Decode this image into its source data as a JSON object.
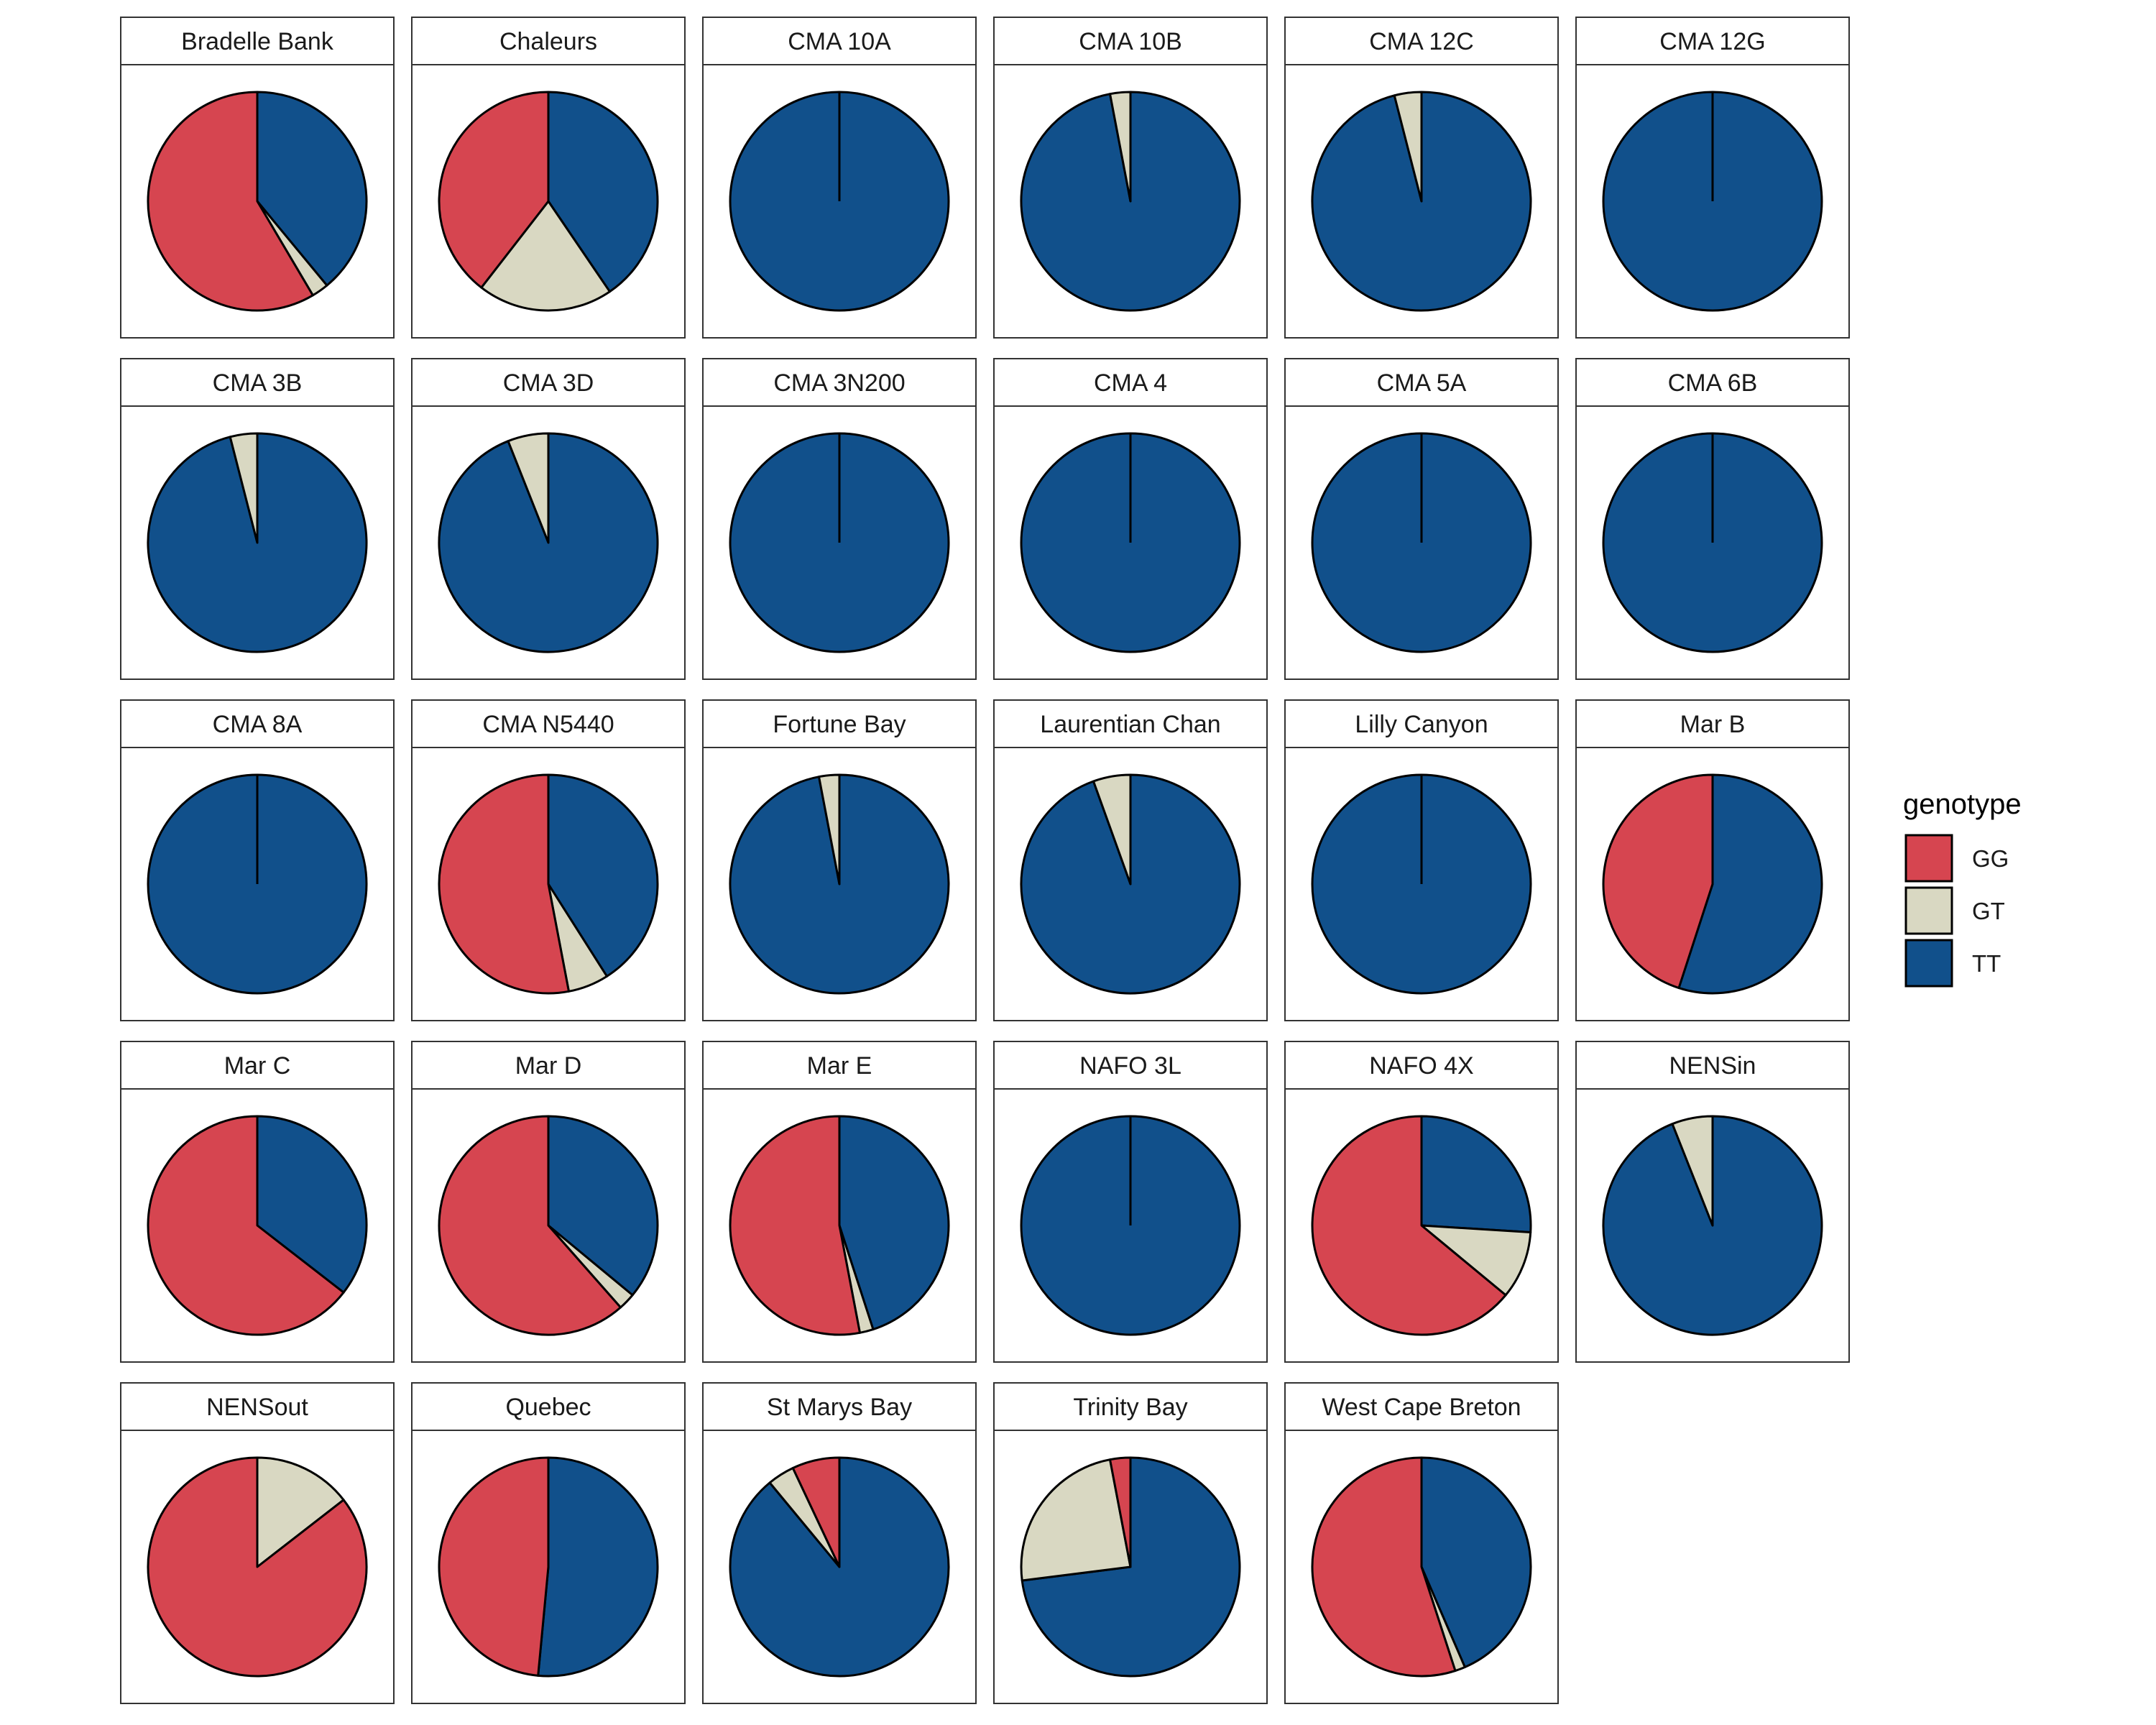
{
  "chart_data": {
    "type": "pie",
    "legend": {
      "title": "genotype",
      "position": "right",
      "entries": [
        {
          "label": "GG",
          "color": "#d64550"
        },
        {
          "label": "GT",
          "color": "#d9d8c2"
        },
        {
          "label": "TT",
          "color": "#11508b"
        }
      ]
    },
    "series_order": [
      "GG",
      "GT",
      "TT"
    ],
    "panels": [
      {
        "label": "Bradelle Bank",
        "GG": 0.585,
        "GT": 0.025,
        "TT": 0.39
      },
      {
        "label": "Chaleurs",
        "GG": 0.395,
        "GT": 0.2,
        "TT": 0.405
      },
      {
        "label": "CMA 10A",
        "GG": 0,
        "GT": 0,
        "TT": 1
      },
      {
        "label": "CMA 10B",
        "GG": 0,
        "GT": 0.03,
        "TT": 0.97
      },
      {
        "label": "CMA 12C",
        "GG": 0,
        "GT": 0.04,
        "TT": 0.96
      },
      {
        "label": "CMA 12G",
        "GG": 0,
        "GT": 0,
        "TT": 1
      },
      {
        "label": "CMA 3B",
        "GG": 0,
        "GT": 0.04,
        "TT": 0.96
      },
      {
        "label": "CMA 3D",
        "GG": 0,
        "GT": 0.06,
        "TT": 0.94
      },
      {
        "label": "CMA 3N200",
        "GG": 0,
        "GT": 0,
        "TT": 1
      },
      {
        "label": "CMA 4",
        "GG": 0,
        "GT": 0,
        "TT": 1
      },
      {
        "label": "CMA 5A",
        "GG": 0,
        "GT": 0,
        "TT": 1
      },
      {
        "label": "CMA 6B",
        "GG": 0,
        "GT": 0,
        "TT": 1
      },
      {
        "label": "CMA 8A",
        "GG": 0,
        "GT": 0,
        "TT": 1
      },
      {
        "label": "CMA N5440",
        "GG": 0.53,
        "GT": 0.06,
        "TT": 0.41
      },
      {
        "label": "Fortune Bay",
        "GG": 0,
        "GT": 0.03,
        "TT": 0.97
      },
      {
        "label": "Laurentian Chan",
        "GG": 0,
        "GT": 0.055,
        "TT": 0.945
      },
      {
        "label": "Lilly Canyon",
        "GG": 0,
        "GT": 0,
        "TT": 1
      },
      {
        "label": "Mar B",
        "GG": 0.45,
        "GT": 0,
        "TT": 0.55
      },
      {
        "label": "Mar C",
        "GG": 0.645,
        "GT": 0,
        "TT": 0.355
      },
      {
        "label": "Mar D",
        "GG": 0.615,
        "GT": 0.025,
        "TT": 0.36
      },
      {
        "label": "Mar E",
        "GG": 0.53,
        "GT": 0.02,
        "TT": 0.45
      },
      {
        "label": "NAFO 3L",
        "GG": 0,
        "GT": 0,
        "TT": 1
      },
      {
        "label": "NAFO 4X",
        "GG": 0.64,
        "GT": 0.1,
        "TT": 0.26
      },
      {
        "label": "NENSin",
        "GG": 0,
        "GT": 0.06,
        "TT": 0.94
      },
      {
        "label": "NENSout",
        "GG": 0.855,
        "GT": 0.145,
        "TT": 0
      },
      {
        "label": "Quebec",
        "GG": 0.485,
        "GT": 0,
        "TT": 0.515
      },
      {
        "label": "St Marys Bay",
        "GG": 0.07,
        "GT": 0.04,
        "TT": 0.89
      },
      {
        "label": "Trinity Bay",
        "GG": 0.03,
        "GT": 0.24,
        "TT": 0.73
      },
      {
        "label": "West Cape Breton",
        "GG": 0.55,
        "GT": 0.015,
        "TT": 0.435
      }
    ]
  }
}
